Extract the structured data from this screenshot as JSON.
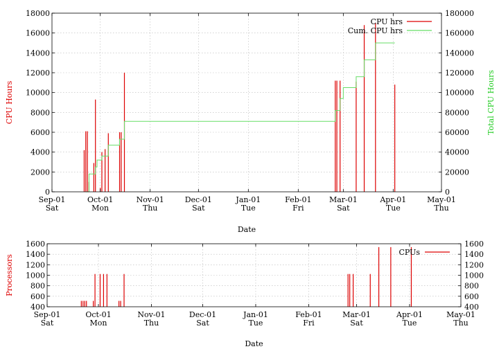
{
  "chart_data": [
    {
      "type": "line",
      "id": "cpu-hours-chart",
      "x_type": "date",
      "xlim": [
        "2001-09-01",
        "2002-05-01"
      ],
      "x_ticks": [
        {
          "date": "2001-09-01",
          "label": "Sep-01",
          "sublabel": "Sat"
        },
        {
          "date": "2001-10-01",
          "label": "Oct-01",
          "sublabel": "Mon"
        },
        {
          "date": "2001-11-01",
          "label": "Nov-01",
          "sublabel": "Thu"
        },
        {
          "date": "2001-12-01",
          "label": "Dec-01",
          "sublabel": "Sat"
        },
        {
          "date": "2002-01-01",
          "label": "Jan-01",
          "sublabel": "Tue"
        },
        {
          "date": "2002-02-01",
          "label": "Feb-01",
          "sublabel": "Fri"
        },
        {
          "date": "2002-03-01",
          "label": "Mar-01",
          "sublabel": "Sat"
        },
        {
          "date": "2002-04-01",
          "label": "Apr-01",
          "sublabel": "Tue"
        },
        {
          "date": "2002-05-01",
          "label": "May-01",
          "sublabel": "Thu"
        }
      ],
      "xlabel": "Date",
      "ylabel": "CPU Hours",
      "ylim": [
        0,
        18000
      ],
      "y_ticks": [
        0,
        2000,
        4000,
        6000,
        8000,
        10000,
        12000,
        14000,
        16000,
        18000
      ],
      "y2label": "Total CPU Hours",
      "y2lim": [
        0,
        180000
      ],
      "y2_ticks": [
        0,
        20000,
        40000,
        60000,
        80000,
        100000,
        120000,
        140000,
        160000,
        180000
      ],
      "grid": true,
      "legend_position": "top-right",
      "series": [
        {
          "name": "CPU hrs",
          "color": "#dd0000",
          "style": "impulses",
          "axis": "y",
          "points": [
            {
              "x": "2001-09-21",
              "y": 4200
            },
            {
              "x": "2001-09-22",
              "y": 6100
            },
            {
              "x": "2001-09-23",
              "y": 6100
            },
            {
              "x": "2001-09-24",
              "y": 1000
            },
            {
              "x": "2001-09-27",
              "y": 2900
            },
            {
              "x": "2001-09-28",
              "y": 9300
            },
            {
              "x": "2001-10-01",
              "y": 400
            },
            {
              "x": "2001-10-02",
              "y": 4000
            },
            {
              "x": "2001-10-04",
              "y": 4300
            },
            {
              "x": "2001-10-06",
              "y": 5900
            },
            {
              "x": "2001-10-13",
              "y": 6000
            },
            {
              "x": "2001-10-14",
              "y": 6000
            },
            {
              "x": "2001-10-16",
              "y": 12000
            },
            {
              "x": "2002-02-24",
              "y": 11200
            },
            {
              "x": "2002-02-25",
              "y": 11200
            },
            {
              "x": "2002-02-27",
              "y": 11200
            },
            {
              "x": "2002-03-09",
              "y": 11100
            },
            {
              "x": "2002-03-14",
              "y": 16800
            },
            {
              "x": "2002-03-21",
              "y": 17000
            },
            {
              "x": "2002-04-02",
              "y": 10800
            }
          ]
        },
        {
          "name": "Cum. CPU hrs",
          "color": "#66dd66",
          "style": "steps",
          "axis": "y2",
          "points": [
            {
              "x": "2001-09-22",
              "y": 0
            },
            {
              "x": "2001-09-24",
              "y": 18000
            },
            {
              "x": "2001-09-28",
              "y": 25000
            },
            {
              "x": "2001-09-29",
              "y": 32000
            },
            {
              "x": "2001-10-02",
              "y": 36000
            },
            {
              "x": "2001-10-06",
              "y": 47000
            },
            {
              "x": "2001-10-13",
              "y": 53000
            },
            {
              "x": "2001-10-16",
              "y": 71000
            },
            {
              "x": "2002-02-24",
              "y": 82000
            },
            {
              "x": "2002-02-27",
              "y": 94000
            },
            {
              "x": "2002-03-01",
              "y": 105000
            },
            {
              "x": "2002-03-09",
              "y": 116000
            },
            {
              "x": "2002-03-14",
              "y": 133000
            },
            {
              "x": "2002-03-21",
              "y": 150000
            },
            {
              "x": "2002-04-02",
              "y": 150000
            }
          ]
        }
      ]
    },
    {
      "type": "line",
      "id": "processors-chart",
      "x_type": "date",
      "xlim": [
        "2001-09-01",
        "2002-05-01"
      ],
      "x_ticks": [
        {
          "date": "2001-09-01",
          "label": "Sep-01",
          "sublabel": "Sat"
        },
        {
          "date": "2001-10-01",
          "label": "Oct-01",
          "sublabel": "Mon"
        },
        {
          "date": "2001-11-01",
          "label": "Nov-01",
          "sublabel": "Thu"
        },
        {
          "date": "2001-12-01",
          "label": "Dec-01",
          "sublabel": "Sat"
        },
        {
          "date": "2002-01-01",
          "label": "Jan-01",
          "sublabel": "Tue"
        },
        {
          "date": "2002-02-01",
          "label": "Feb-01",
          "sublabel": "Fri"
        },
        {
          "date": "2002-03-01",
          "label": "Mar-01",
          "sublabel": "Sat"
        },
        {
          "date": "2002-04-01",
          "label": "Apr-01",
          "sublabel": "Tue"
        },
        {
          "date": "2002-05-01",
          "label": "May-01",
          "sublabel": "Thu"
        }
      ],
      "xlabel": "Date",
      "ylabel": "Processors",
      "ylim": [
        400,
        1600
      ],
      "y_ticks": [
        400,
        600,
        800,
        1000,
        1200,
        1400,
        1600
      ],
      "y2lim": [
        400,
        1600
      ],
      "y2_ticks": [
        400,
        600,
        800,
        1000,
        1200,
        1400,
        1600
      ],
      "grid": true,
      "legend_position": "top-right",
      "series": [
        {
          "name": "CPUs",
          "color": "#dd0000",
          "style": "impulses",
          "axis": "y",
          "points": [
            {
              "x": "2001-09-21",
              "y": 512
            },
            {
              "x": "2001-09-22",
              "y": 512
            },
            {
              "x": "2001-09-23",
              "y": 512
            },
            {
              "x": "2001-09-24",
              "y": 512
            },
            {
              "x": "2001-09-28",
              "y": 512
            },
            {
              "x": "2001-09-29",
              "y": 1024
            },
            {
              "x": "2001-10-02",
              "y": 1024
            },
            {
              "x": "2001-10-04",
              "y": 1024
            },
            {
              "x": "2001-10-06",
              "y": 1024
            },
            {
              "x": "2001-10-13",
              "y": 512
            },
            {
              "x": "2001-10-14",
              "y": 512
            },
            {
              "x": "2001-10-16",
              "y": 1024
            },
            {
              "x": "2002-02-24",
              "y": 1024
            },
            {
              "x": "2002-02-25",
              "y": 1024
            },
            {
              "x": "2002-02-27",
              "y": 1024
            },
            {
              "x": "2002-03-09",
              "y": 1024
            },
            {
              "x": "2002-03-14",
              "y": 1536
            },
            {
              "x": "2002-03-21",
              "y": 1536
            },
            {
              "x": "2002-04-02",
              "y": 1536
            }
          ]
        }
      ]
    }
  ]
}
